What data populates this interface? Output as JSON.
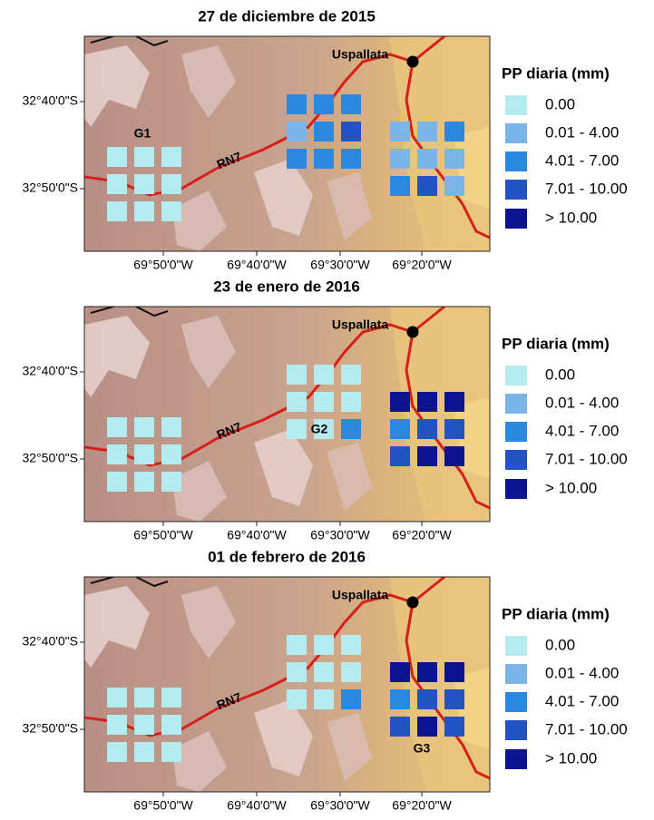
{
  "legend": {
    "title": "PP diaria (mm)",
    "classes": [
      "0.00",
      "0.01 - 4.00",
      "4.01 - 7.00",
      "7.01 - 10.00",
      "> 10.00"
    ],
    "colors": [
      "#b4ebef",
      "#7ab4e8",
      "#2a88e0",
      "#2454c4",
      "#0c1490"
    ]
  },
  "panels": [
    {
      "title": "27 de diciembre de 2015",
      "town": "Uspallata",
      "road": "RN7",
      "group_label": "G1",
      "y_ticks": [
        "32°40'0\"S",
        "32°50'0\"S"
      ],
      "x_ticks": [
        "69°50'0\"W",
        "69°40'0\"W",
        "69°30'0\"W",
        "69°20'0\"W"
      ],
      "grids": [
        [
          [
            0,
            0,
            0
          ],
          [
            0,
            0,
            0
          ],
          [
            0,
            0,
            0
          ]
        ],
        [
          [
            2,
            2,
            2
          ],
          [
            1,
            2,
            3
          ],
          [
            2,
            2,
            2
          ]
        ],
        [
          [
            1,
            1,
            2
          ],
          [
            1,
            1,
            1
          ],
          [
            2,
            3,
            1
          ]
        ]
      ]
    },
    {
      "title": "23 de enero de 2016",
      "town": "Uspallata",
      "road": "RN7",
      "group_label": "G2",
      "y_ticks": [
        "32°40'0\"S",
        "32°50'0\"S"
      ],
      "x_ticks": [
        "69°50'0\"W",
        "69°40'0\"W",
        "69°30'0\"W",
        "69°20'0\"W"
      ],
      "grids": [
        [
          [
            0,
            0,
            0
          ],
          [
            0,
            0,
            0
          ],
          [
            0,
            0,
            0
          ]
        ],
        [
          [
            0,
            0,
            0
          ],
          [
            0,
            0,
            0
          ],
          [
            0,
            0,
            2
          ]
        ],
        [
          [
            4,
            4,
            4
          ],
          [
            2,
            3,
            3
          ],
          [
            3,
            4,
            4
          ]
        ]
      ]
    },
    {
      "title": "01 de febrero de 2016",
      "town": "Uspallata",
      "road": "RN7",
      "group_label": "G3",
      "y_ticks": [
        "32°40'0\"S",
        "32°50'0\"S"
      ],
      "x_ticks": [
        "69°50'0\"W",
        "69°40'0\"W",
        "69°30'0\"W",
        "69°20'0\"W"
      ],
      "grids": [
        [
          [
            0,
            0,
            0
          ],
          [
            0,
            0,
            0
          ],
          [
            0,
            0,
            0
          ]
        ],
        [
          [
            0,
            0,
            0
          ],
          [
            0,
            0,
            0
          ],
          [
            0,
            0,
            2
          ]
        ],
        [
          [
            4,
            4,
            4
          ],
          [
            2,
            3,
            3
          ],
          [
            3,
            4,
            3
          ]
        ]
      ]
    }
  ]
}
